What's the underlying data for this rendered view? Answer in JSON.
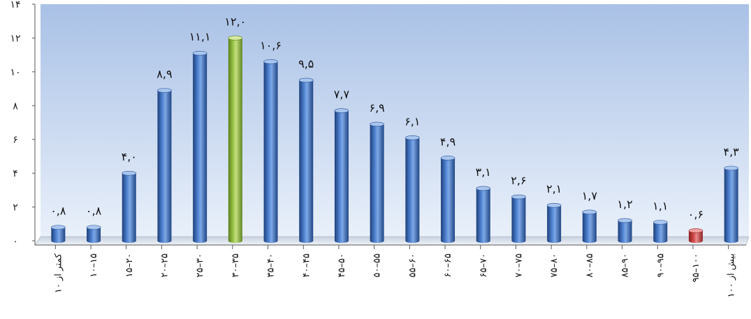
{
  "chart_data": {
    "type": "bar",
    "style": "3d-cylinder",
    "title": "",
    "xlabel": "",
    "ylabel": "",
    "ylim": [
      0,
      14
    ],
    "yticks": [
      "۰",
      "۲",
      "۴",
      "۶",
      "۸",
      "۱۰",
      "۱۲",
      "۱۴"
    ],
    "grid": false,
    "legend": "none",
    "categories": [
      "کمتر از ۱۰",
      "۱۰–۱۵",
      "۱۵–۲۰",
      "۲۰–۲۵",
      "۲۵–۳۰",
      "۳۰–۳۵",
      "۳۵–۴۰",
      "۴۰–۴۵",
      "۴۵–۵۰",
      "۵۰–۵۵",
      "۵۵–۶۰",
      "۶۰–۶۵",
      "۶۵–۷۰",
      "۷۰–۷۵",
      "۷۵–۸۰",
      "۸۰–۸۵",
      "۸۵–۹۰",
      "۹۰–۹۵",
      "۹۵–۱۰۰",
      "بیش از ۱۰۰"
    ],
    "values": [
      0.8,
      0.8,
      4.0,
      8.9,
      11.1,
      12.0,
      10.6,
      9.5,
      7.7,
      6.9,
      6.1,
      4.9,
      3.1,
      2.6,
      2.1,
      1.7,
      1.2,
      1.1,
      0.6,
      4.3
    ],
    "data_labels": [
      "۰,۸",
      "۰,۸",
      "۴,۰",
      "۸,۹",
      "۱۱,۱",
      "۱۲,۰",
      "۱۰,۶",
      "۹,۵",
      "۷,۷",
      "۶,۹",
      "۶,۱",
      "۴,۹",
      "۳,۱",
      "۲,۶",
      "۲,۱",
      "۱,۷",
      "۱,۲",
      "۱,۱",
      "۰,۶",
      "۴,۳"
    ],
    "colors": {
      "default": "#3a68b8",
      "highlight_max": "#8cb83a",
      "highlight_min": "#c83c3c",
      "plot_bg_top": "#a9c1e6",
      "plot_bg_bottom": "#e9f0fa"
    },
    "highlight_index_max": 5,
    "highlight_index_min": 18
  }
}
